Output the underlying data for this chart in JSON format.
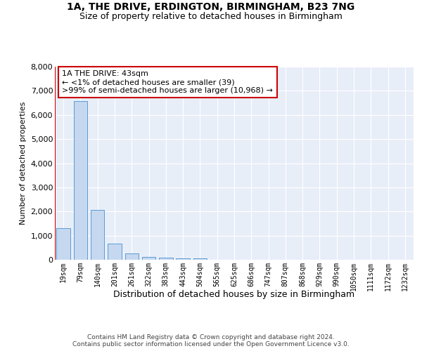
{
  "title_line1": "1A, THE DRIVE, ERDINGTON, BIRMINGHAM, B23 7NG",
  "title_line2": "Size of property relative to detached houses in Birmingham",
  "xlabel": "Distribution of detached houses by size in Birmingham",
  "ylabel": "Number of detached properties",
  "categories": [
    "19sqm",
    "79sqm",
    "140sqm",
    "201sqm",
    "261sqm",
    "322sqm",
    "383sqm",
    "443sqm",
    "504sqm",
    "565sqm",
    "625sqm",
    "686sqm",
    "747sqm",
    "807sqm",
    "868sqm",
    "929sqm",
    "990sqm",
    "1050sqm",
    "1111sqm",
    "1172sqm",
    "1232sqm"
  ],
  "values": [
    1300,
    6560,
    2080,
    660,
    250,
    130,
    100,
    70,
    70,
    0,
    0,
    0,
    0,
    0,
    0,
    0,
    0,
    0,
    0,
    0,
    0
  ],
  "bar_color": "#c5d8f0",
  "bar_edge_color": "#5b9bd5",
  "vline_x": -0.5,
  "vline_color": "#cc0000",
  "annotation_text": "1A THE DRIVE: 43sqm\n← <1% of detached houses are smaller (39)\n>99% of semi-detached houses are larger (10,968) →",
  "annotation_box_facecolor": "#ffffff",
  "annotation_box_edgecolor": "#cc0000",
  "ylim_max": 8000,
  "yticks": [
    0,
    1000,
    2000,
    3000,
    4000,
    5000,
    6000,
    7000,
    8000
  ],
  "background_color": "#e8eef8",
  "grid_color": "#ffffff",
  "footer_line1": "Contains HM Land Registry data © Crown copyright and database right 2024.",
  "footer_line2": "Contains public sector information licensed under the Open Government Licence v3.0."
}
